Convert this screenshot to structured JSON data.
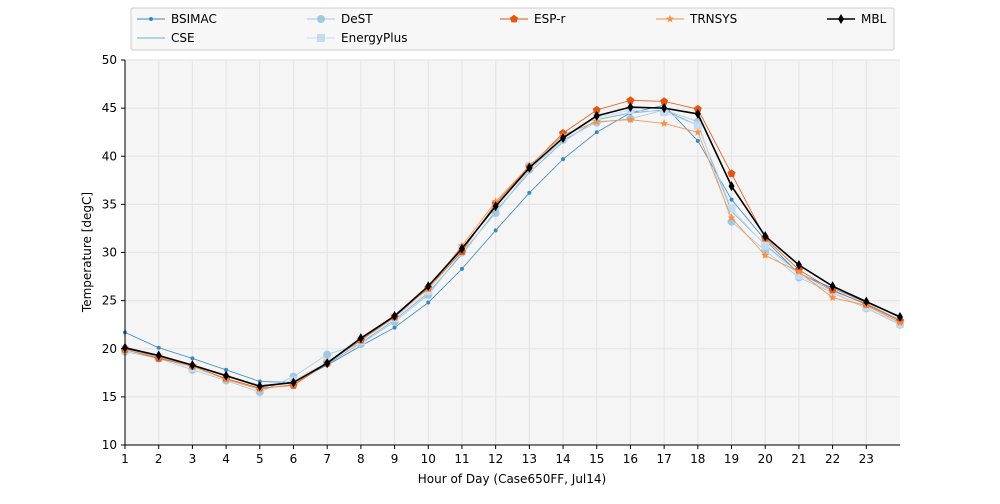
{
  "chart_data": {
    "type": "line",
    "title": "",
    "xlabel": "Hour of Day (Case650FF, Jul14)",
    "ylabel": "Temperature [degC]",
    "xlim": [
      1,
      24
    ],
    "ylim": [
      10,
      50
    ],
    "xticks": [
      1,
      2,
      3,
      4,
      5,
      6,
      7,
      8,
      9,
      10,
      11,
      12,
      13,
      14,
      15,
      16,
      17,
      18,
      19,
      20,
      21,
      22,
      23
    ],
    "yticks": [
      10,
      15,
      20,
      25,
      30,
      35,
      40,
      45,
      50
    ],
    "grid": true,
    "legend_placement": "top",
    "x": [
      1,
      2,
      3,
      4,
      5,
      6,
      7,
      8,
      9,
      10,
      11,
      12,
      13,
      14,
      15,
      16,
      17,
      18,
      19,
      20,
      21,
      22,
      23,
      24
    ],
    "series": [
      {
        "name": "BSIMAC",
        "color": "#3a87c4",
        "marker": "dot",
        "values": [
          21.7,
          20.1,
          19.0,
          17.8,
          16.6,
          16.5,
          18.3,
          20.3,
          22.2,
          24.8,
          28.3,
          32.3,
          36.2,
          39.7,
          42.5,
          44.5,
          45.3,
          41.6,
          35.5,
          31.3,
          27.8,
          26.3,
          24.8,
          23.4
        ]
      },
      {
        "name": "CSE",
        "color": "#6baed6",
        "marker": "pixel",
        "values": [
          20.0,
          19.2,
          18.2,
          17.2,
          16.2,
          16.5,
          18.4,
          20.6,
          23.0,
          25.8,
          29.8,
          34.3,
          38.3,
          41.5,
          43.8,
          44.5,
          44.8,
          43.2,
          34.3,
          30.8,
          27.9,
          26.0,
          24.7,
          23.0
        ]
      },
      {
        "name": "DeST",
        "color": "#9ecae1",
        "marker": "circle",
        "values": [
          19.7,
          19.0,
          17.8,
          16.7,
          15.5,
          17.1,
          19.4,
          20.5,
          22.8,
          25.6,
          30.0,
          34.1,
          38.6,
          41.7,
          43.5,
          43.9,
          44.8,
          43.6,
          33.2,
          30.2,
          27.4,
          25.8,
          24.2,
          22.5
        ]
      },
      {
        "name": "EnergyPlus",
        "color": "#c6dbef",
        "marker": "square",
        "values": [
          19.9,
          19.1,
          18.0,
          16.9,
          15.9,
          16.7,
          18.6,
          20.8,
          23.2,
          26.0,
          30.3,
          34.9,
          39.0,
          42.1,
          44.0,
          44.8,
          44.6,
          43.2,
          34.6,
          30.7,
          27.6,
          25.9,
          24.3,
          22.6
        ]
      },
      {
        "name": "ESP-r",
        "color": "#e6550d",
        "marker": "pentagon",
        "values": [
          19.9,
          19.0,
          18.2,
          16.9,
          15.9,
          16.2,
          18.5,
          20.9,
          23.3,
          26.3,
          30.1,
          35.1,
          38.9,
          42.4,
          44.8,
          45.8,
          45.7,
          44.9,
          38.2,
          31.5,
          28.2,
          26.1,
          24.6,
          22.9
        ]
      },
      {
        "name": "TRNSYS",
        "color": "#fd8d3c",
        "marker": "star",
        "values": [
          19.9,
          19.1,
          18.2,
          16.8,
          15.8,
          16.3,
          18.6,
          21.0,
          23.5,
          26.2,
          30.7,
          35.3,
          39.0,
          42.2,
          43.6,
          43.8,
          43.4,
          42.5,
          33.6,
          29.7,
          28.0,
          25.3,
          24.5,
          22.7
        ]
      },
      {
        "name": "MBL",
        "color": "#000000",
        "marker": "thin-diamond",
        "values": [
          20.1,
          19.3,
          18.3,
          17.2,
          16.1,
          16.5,
          18.5,
          21.1,
          23.4,
          26.5,
          30.4,
          34.8,
          38.8,
          41.9,
          44.2,
          45.1,
          45.0,
          44.4,
          36.9,
          31.7,
          28.7,
          26.5,
          24.9,
          23.3
        ]
      }
    ]
  }
}
